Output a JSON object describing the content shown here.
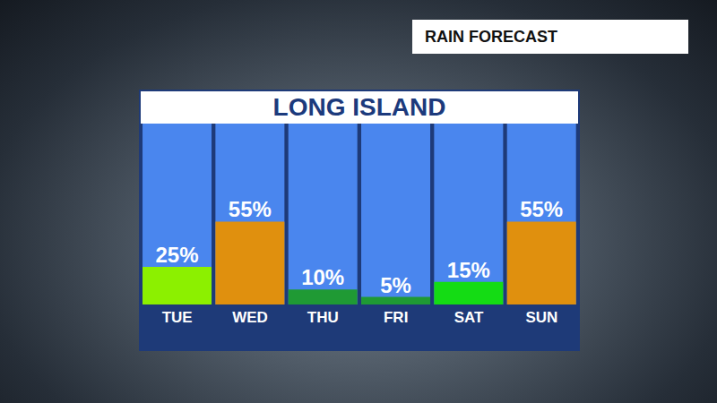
{
  "chart_data": {
    "type": "bar",
    "title": "LONG ISLAND",
    "subtitle": "RAIN FORECAST",
    "categories": [
      "TUE",
      "WED",
      "THU",
      "FRI",
      "SAT",
      "SUN"
    ],
    "values": [
      25,
      55,
      10,
      5,
      15,
      55
    ],
    "value_labels": [
      "25%",
      "55%",
      "10%",
      "5%",
      "15%",
      "55%"
    ],
    "colors": [
      "#8cf000",
      "#e0900e",
      "#1f9a34",
      "#1f9a34",
      "#14dc14",
      "#e0900e"
    ],
    "ylim": [
      0,
      120
    ],
    "grid": false,
    "data_labels": true,
    "tick_labels": "x"
  }
}
